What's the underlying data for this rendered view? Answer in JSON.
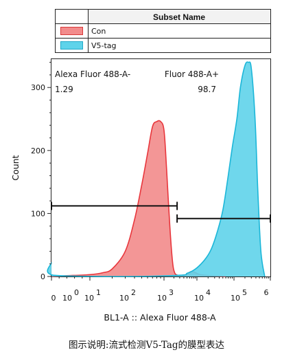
{
  "legend": {
    "header": "Subset Name",
    "items": [
      {
        "label": "Con",
        "color": "#f28b8b"
      },
      {
        "label": "V5-tag",
        "color": "#5fd3ea"
      }
    ]
  },
  "caption": "图示说明:流式检测V5-Tag的膜型表达",
  "chart_data": {
    "type": "area",
    "xlabel": "BL1-A :: Alexa Fluor   488-A",
    "ylabel": "Count",
    "xscale": "biexponential",
    "x_tick_labels": [
      "0",
      "0",
      "1",
      "2",
      "3",
      "4",
      "5",
      "6"
    ],
    "x_tick_exponents": [
      "",
      "0",
      "0",
      "0",
      "0",
      "0",
      "0",
      ""
    ],
    "y_ticks": [
      0,
      100,
      200,
      300
    ],
    "ylim": [
      0,
      345
    ],
    "gates": [
      {
        "label": "Alexa Fluor   488-A-",
        "value": "1.29",
        "x_range": [
          0,
          2500
        ],
        "y": 112
      },
      {
        "label": "Fluor   488-A+",
        "value": "98.7",
        "x_range": [
          2500,
          1000000
        ],
        "y": 92
      }
    ],
    "series": [
      {
        "name": "Con",
        "color": "#f28b8b",
        "stroke": "#e8363c",
        "x": [
          0,
          30,
          100,
          150,
          200,
          300,
          400,
          500,
          600,
          700,
          800,
          900,
          1000,
          1200,
          1500,
          1800,
          2100,
          2600,
          3200,
          4500,
          7000,
          12000,
          25000,
          60000
        ],
        "y": [
          0,
          1,
          3,
          6,
          12,
          40,
          90,
          145,
          195,
          238,
          246,
          246,
          232,
          170,
          80,
          25,
          6,
          2,
          1,
          2,
          8,
          3,
          1,
          0
        ]
      },
      {
        "name": "V5-tag",
        "color": "#5fd3ea",
        "stroke": "#1bb6d8",
        "x": [
          0,
          5,
          300,
          3000,
          5000,
          8000,
          12000,
          18000,
          25000,
          35000,
          50000,
          70000,
          90000,
          120000,
          150000,
          200000,
          250000,
          300000,
          380000,
          450000,
          550000,
          700000
        ],
        "y": [
          22,
          2,
          0,
          2,
          5,
          10,
          18,
          30,
          45,
          70,
          105,
          160,
          205,
          250,
          300,
          335,
          340,
          330,
          250,
          140,
          40,
          0
        ]
      }
    ]
  }
}
